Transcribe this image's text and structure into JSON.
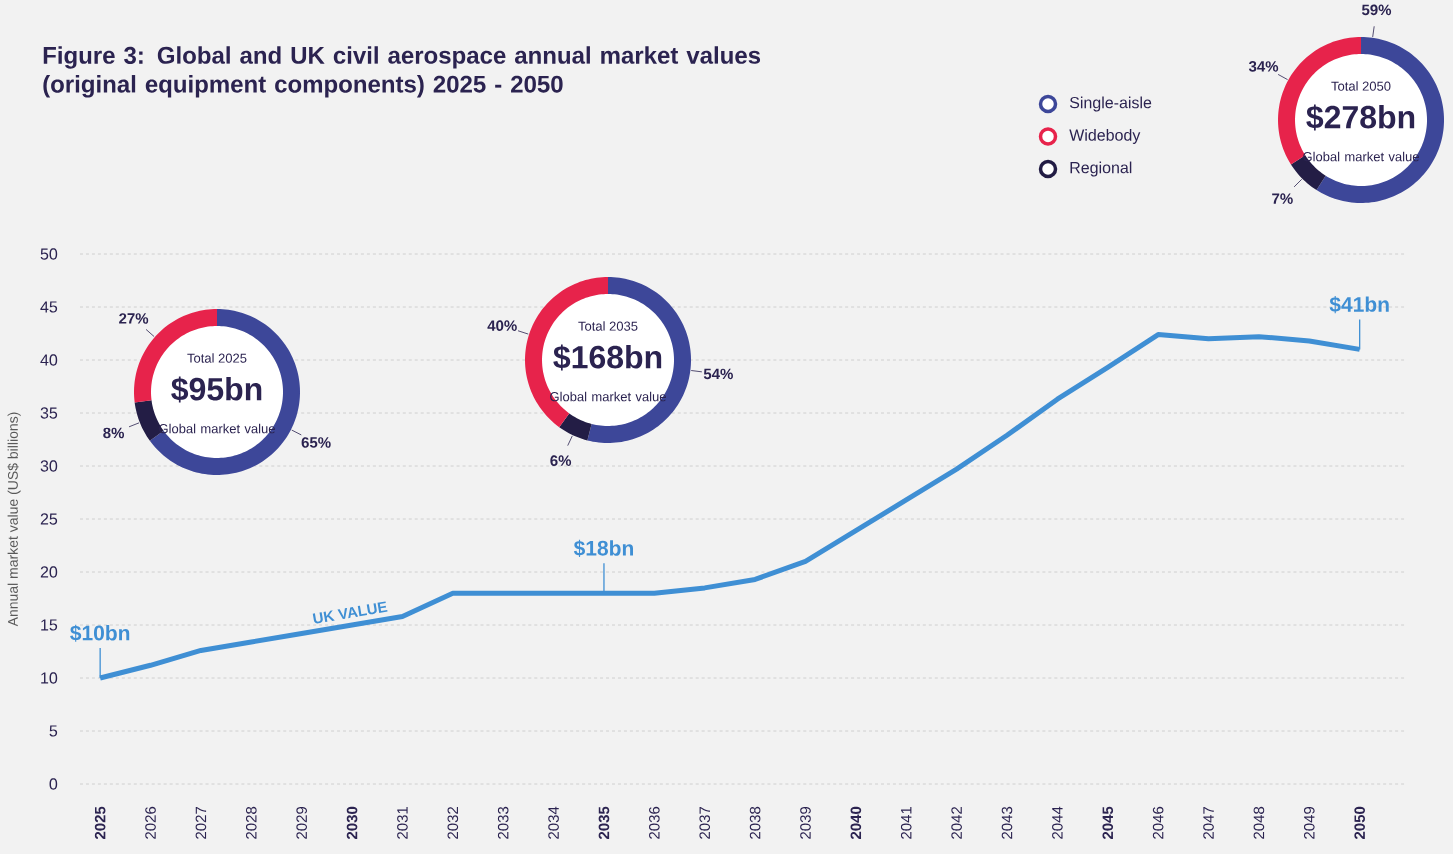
{
  "chart_data": [
    {
      "type": "line",
      "title": "Figure 3: Global and UK civil aerospace annual market values (original equipment components) 2025 - 2050",
      "ylabel": "Annual market value (US$ billions)",
      "x": [
        2025,
        2026,
        2027,
        2028,
        2029,
        2030,
        2031,
        2032,
        2033,
        2034,
        2035,
        2036,
        2037,
        2038,
        2039,
        2040,
        2041,
        2042,
        2043,
        2044,
        2045,
        2046,
        2047,
        2048,
        2049,
        2050
      ],
      "series": [
        {
          "name": "UK VALUE",
          "color": "#3f8fd4",
          "values": [
            10,
            11.2,
            12.6,
            13.4,
            14.2,
            15.0,
            15.8,
            18,
            18,
            18,
            18,
            18,
            18.5,
            19.3,
            21,
            23.9,
            26.8,
            29.7,
            32.9,
            36.3,
            39.3,
            42.4,
            42.0,
            42.2,
            41.8,
            41
          ],
          "value_labels": [
            "$10bn",
            null,
            null,
            null,
            null,
            null,
            null,
            null,
            null,
            null,
            "$18bn",
            null,
            null,
            null,
            null,
            null,
            null,
            null,
            null,
            null,
            null,
            null,
            null,
            null,
            null,
            "$41bn"
          ]
        }
      ],
      "xlim": [
        2024.6,
        2050.9
      ],
      "ylim": [
        0,
        50
      ],
      "xticks": [
        2025,
        2026,
        2027,
        2028,
        2029,
        2030,
        2031,
        2032,
        2033,
        2034,
        2035,
        2036,
        2037,
        2038,
        2039,
        2040,
        2041,
        2042,
        2043,
        2044,
        2045,
        2046,
        2047,
        2048,
        2049,
        2050
      ],
      "yticks": [
        0,
        5,
        10,
        15,
        20,
        25,
        30,
        35,
        40,
        45,
        50
      ],
      "grid": "y"
    },
    {
      "type": "donut",
      "title": "Total 2025",
      "annotations": [
        "$95bn",
        "Global market value"
      ],
      "values": [
        65,
        27,
        8
      ],
      "colors": [
        "#3d4799",
        "#e7234b",
        "#231d45"
      ],
      "value_labels": [
        "65%",
        "27%",
        "8%"
      ]
    },
    {
      "type": "donut",
      "title": "Total 2035",
      "annotations": [
        "$168bn",
        "Global market value"
      ],
      "values": [
        54,
        40,
        6
      ],
      "colors": [
        "#3d4799",
        "#e7234b",
        "#231d45"
      ],
      "value_labels": [
        "54%",
        "40%",
        "6%"
      ]
    },
    {
      "type": "donut",
      "title": "Total 2050",
      "annotations": [
        "$278bn",
        "Global market value"
      ],
      "categories": [
        "Single-aisle",
        "Widebody",
        "Regional"
      ],
      "values": [
        59,
        34,
        7
      ],
      "colors": [
        "#3d4799",
        "#e7234b",
        "#231d45"
      ],
      "value_labels": [
        "59%",
        "34%",
        "7%"
      ],
      "legend": "left"
    }
  ]
}
